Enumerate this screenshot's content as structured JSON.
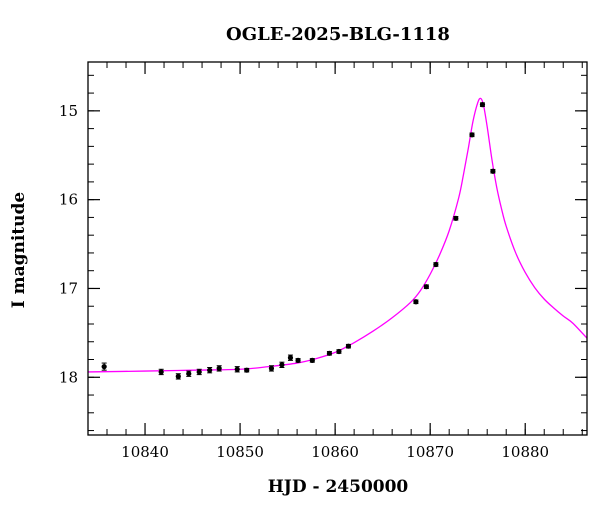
{
  "chart_data": {
    "type": "scatter",
    "title": "OGLE-2025-BLG-1118",
    "xlabel": "HJD - 2450000",
    "ylabel": "I magnitude",
    "xlim": [
      10834,
      10886.5
    ],
    "ylim": [
      18.65,
      14.45
    ],
    "y_inverted": true,
    "grid": false,
    "legend": "none",
    "x_ticks": [
      10840,
      10850,
      10860,
      10870,
      10880
    ],
    "x_tick_labels": [
      "10840",
      "10850",
      "10860",
      "10870",
      "10880"
    ],
    "y_ticks": [
      15,
      16,
      17,
      18
    ],
    "y_tick_labels": [
      "15",
      "16",
      "17",
      "18"
    ],
    "x_minor_step": 2,
    "y_minor_step": 0.2,
    "colors": {
      "points": "#000000",
      "model": "#ff00ff"
    },
    "series": [
      {
        "kind": "points",
        "x": [
          10835.7,
          10841.7,
          10843.5,
          10844.6,
          10845.7,
          10846.8,
          10847.8,
          10849.7,
          10850.7,
          10853.3,
          10854.4,
          10855.3,
          10856.1,
          10857.6,
          10859.4,
          10860.4,
          10861.4,
          10868.5,
          10869.6,
          10870.6,
          10872.7,
          10874.4,
          10875.5,
          10876.6
        ],
        "y": [
          17.88,
          17.94,
          17.99,
          17.96,
          17.94,
          17.92,
          17.9,
          17.91,
          17.92,
          17.9,
          17.86,
          17.78,
          17.81,
          17.81,
          17.73,
          17.71,
          17.65,
          17.15,
          16.98,
          16.73,
          16.21,
          15.27,
          14.93,
          15.68
        ],
        "yerr": [
          0.04,
          0.03,
          0.03,
          0.03,
          0.03,
          0.03,
          0.03,
          0.03,
          0.02,
          0.03,
          0.03,
          0.03,
          0.02,
          0.02,
          0.02,
          0.02,
          0.02,
          0.02,
          0.02,
          0.02,
          0.02,
          0.02,
          0.02,
          0.02
        ]
      },
      {
        "kind": "model",
        "x": [
          10834,
          10840,
          10845,
          10850,
          10853,
          10856,
          10858,
          10860,
          10862,
          10864,
          10866,
          10868,
          10869,
          10870,
          10871,
          10872,
          10873,
          10873.5,
          10874,
          10874.5,
          10875,
          10875.3,
          10875.6,
          10876,
          10876.5,
          10877,
          10877.5,
          10878,
          10879,
          10880,
          10881,
          10882,
          10883,
          10884,
          10885,
          10886.5
        ],
        "y": [
          17.94,
          17.93,
          17.92,
          17.91,
          17.88,
          17.84,
          17.79,
          17.72,
          17.61,
          17.48,
          17.33,
          17.15,
          17.02,
          16.84,
          16.62,
          16.35,
          15.98,
          15.72,
          15.43,
          15.12,
          14.91,
          14.86,
          14.93,
          15.18,
          15.55,
          15.86,
          16.1,
          16.3,
          16.6,
          16.82,
          16.99,
          17.12,
          17.22,
          17.31,
          17.39,
          17.56
        ]
      }
    ]
  }
}
